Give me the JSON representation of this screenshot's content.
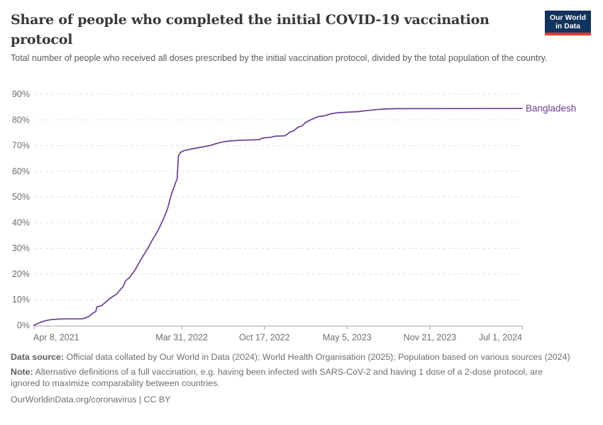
{
  "header": {
    "title": "Share of people who completed the initial COVID-19 vaccination protocol",
    "subtitle": "Total number of people who received all doses prescribed by the initial vaccination protocol, divided by the total population of the country.",
    "logo_line1": "Our World",
    "logo_line2": "in Data"
  },
  "footer": {
    "data_source_label": "Data source:",
    "data_source_text": "Official data collated by Our World in Data (2024); World Health Organisation (2025); Population based on various sources (2024)",
    "note_label": "Note:",
    "note_text": "Alternative definitions of a full vaccination, e.g. having been infected with SARS-CoV-2 and having 1 dose of a 2-dose protocol, are ignored to maximize comparability between countries.",
    "license": "OurWorldinData.org/coronavirus | CC BY"
  },
  "colors": {
    "series": "#6D3E91",
    "grid": "#E2E2E2",
    "axis": "#A0A0A0",
    "tick_text": "#6E6E6E",
    "logo_bg": "#12335C",
    "logo_accent": "#DC3C34"
  },
  "chart_data": {
    "type": "line",
    "title": "Share of people who completed the initial COVID-19 vaccination protocol",
    "xlabel": "",
    "ylabel": "",
    "ylim": [
      0,
      90
    ],
    "y_ticks": [
      0,
      10,
      20,
      30,
      40,
      50,
      60,
      70,
      80,
      90
    ],
    "y_tick_suffix": "%",
    "grid": "dashed-horizontal",
    "legend_position": "end-of-line-label",
    "x_domain": [
      "2021-04-08",
      "2024-07-01"
    ],
    "x_ticks": [
      {
        "date": "2021-04-08",
        "label": "Apr 8, 2021",
        "align": "start"
      },
      {
        "date": "2022-03-31",
        "label": "Mar 31, 2022",
        "align": "middle"
      },
      {
        "date": "2022-10-17",
        "label": "Oct 17, 2022",
        "align": "middle"
      },
      {
        "date": "2023-05-05",
        "label": "May 5, 2023",
        "align": "middle"
      },
      {
        "date": "2023-11-21",
        "label": "Nov 21, 2023",
        "align": "middle"
      },
      {
        "date": "2024-07-01",
        "label": "Jul 1, 2024",
        "align": "end"
      }
    ],
    "series": [
      {
        "name": "Bangladesh",
        "color": "#6D3E91",
        "points": [
          [
            "2021-04-08",
            0
          ],
          [
            "2021-04-15",
            0.6
          ],
          [
            "2021-04-24",
            1.2
          ],
          [
            "2021-05-05",
            1.8
          ],
          [
            "2021-05-18",
            2.2
          ],
          [
            "2021-06-02",
            2.4
          ],
          [
            "2021-06-20",
            2.5
          ],
          [
            "2021-08-02",
            2.5
          ],
          [
            "2021-08-12",
            3.0
          ],
          [
            "2021-08-20",
            3.6
          ],
          [
            "2021-08-28",
            4.8
          ],
          [
            "2021-09-04",
            5.3
          ],
          [
            "2021-09-07",
            7.2
          ],
          [
            "2021-09-18",
            7.6
          ],
          [
            "2021-09-30",
            9.3
          ],
          [
            "2021-10-12",
            10.9
          ],
          [
            "2021-10-25",
            12.2
          ],
          [
            "2021-11-03",
            14.0
          ],
          [
            "2021-11-10",
            15.2
          ],
          [
            "2021-11-15",
            17.3
          ],
          [
            "2021-11-25",
            18.6
          ],
          [
            "2021-12-08",
            21.5
          ],
          [
            "2021-12-20",
            25.0
          ],
          [
            "2022-01-10",
            30.5
          ],
          [
            "2022-01-18",
            33.0
          ],
          [
            "2022-01-25",
            34.8
          ],
          [
            "2022-02-05",
            38.0
          ],
          [
            "2022-02-15",
            41.5
          ],
          [
            "2022-02-24",
            45.0
          ],
          [
            "2022-03-02",
            48.5
          ],
          [
            "2022-03-08",
            52.0
          ],
          [
            "2022-03-12",
            53.5
          ],
          [
            "2022-03-16",
            55.5
          ],
          [
            "2022-03-20",
            57.0
          ],
          [
            "2022-03-23",
            66.0
          ],
          [
            "2022-03-28",
            67.3
          ],
          [
            "2022-04-05",
            68.0
          ],
          [
            "2022-04-22",
            68.6
          ],
          [
            "2022-05-15",
            69.3
          ],
          [
            "2022-06-08",
            70.0
          ],
          [
            "2022-06-25",
            70.9
          ],
          [
            "2022-07-15",
            71.6
          ],
          [
            "2022-08-05",
            71.9
          ],
          [
            "2022-09-01",
            72.1
          ],
          [
            "2022-10-05",
            72.3
          ],
          [
            "2022-10-12",
            72.9
          ],
          [
            "2022-11-01",
            73.2
          ],
          [
            "2022-11-10",
            73.6
          ],
          [
            "2022-12-05",
            73.8
          ],
          [
            "2022-12-12",
            74.5
          ],
          [
            "2022-12-18",
            75.3
          ],
          [
            "2022-12-24",
            75.5
          ],
          [
            "2023-01-01",
            76.5
          ],
          [
            "2023-01-08",
            77.3
          ],
          [
            "2023-01-15",
            77.5
          ],
          [
            "2023-01-23",
            78.8
          ],
          [
            "2023-02-01",
            79.6
          ],
          [
            "2023-02-12",
            80.5
          ],
          [
            "2023-02-25",
            81.3
          ],
          [
            "2023-03-10",
            81.5
          ],
          [
            "2023-03-28",
            82.4
          ],
          [
            "2023-04-14",
            82.8
          ],
          [
            "2023-05-30",
            83.2
          ],
          [
            "2023-07-15",
            84.0
          ],
          [
            "2023-08-05",
            84.2
          ],
          [
            "2023-09-01",
            84.35
          ],
          [
            "2024-07-01",
            84.4
          ]
        ]
      }
    ]
  }
}
